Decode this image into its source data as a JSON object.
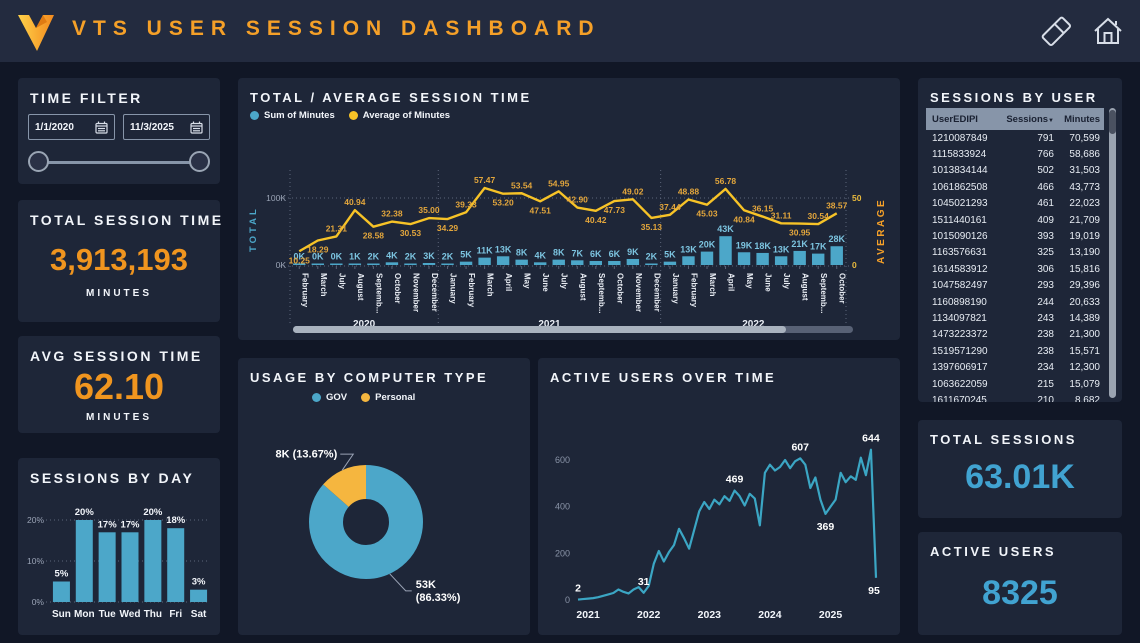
{
  "header": {
    "title": "VTS USER SESSION DASHBOARD"
  },
  "icons": {
    "eraser": "eraser-icon",
    "home": "home-icon",
    "calendar": "calendar-icon",
    "sort_desc": "▼"
  },
  "time_filter": {
    "title": "TIME FILTER",
    "start_date": "1/1/2020",
    "end_date": "11/3/2025"
  },
  "kpis": {
    "total_session_time": {
      "title": "TOTAL SESSION TIME",
      "value": "3,913,193",
      "unit": "MINUTES"
    },
    "avg_session_time": {
      "title": "AVG SESSION TIME",
      "value": "62.10",
      "unit": "MINUTES"
    },
    "total_sessions": {
      "title": "TOTAL SESSIONS",
      "value": "63.01K"
    },
    "active_users": {
      "title": "ACTIVE USERS",
      "value": "8325"
    }
  },
  "sessions_by_user": {
    "title": "SESSIONS BY USER",
    "columns": [
      "UserEDIPI",
      "Sessions",
      "Minutes"
    ],
    "rows": [
      [
        "1210087849",
        "791",
        "70,599"
      ],
      [
        "1115833924",
        "766",
        "58,686"
      ],
      [
        "1013834144",
        "502",
        "31,503"
      ],
      [
        "1061862508",
        "466",
        "43,773"
      ],
      [
        "1045021293",
        "461",
        "22,023"
      ],
      [
        "1511440161",
        "409",
        "21,709"
      ],
      [
        "1015090126",
        "393",
        "19,019"
      ],
      [
        "1163576631",
        "325",
        "13,190"
      ],
      [
        "1614583912",
        "306",
        "15,816"
      ],
      [
        "1047582497",
        "293",
        "29,396"
      ],
      [
        "1160898190",
        "244",
        "20,633"
      ],
      [
        "1134097821",
        "243",
        "14,389"
      ],
      [
        "1473223372",
        "238",
        "21,300"
      ],
      [
        "1519571290",
        "238",
        "15,571"
      ],
      [
        "1397606917",
        "234",
        "12,300"
      ],
      [
        "1063622059",
        "215",
        "15,079"
      ],
      [
        "1611670245",
        "210",
        "8,682"
      ]
    ]
  },
  "chart_data": [
    {
      "id": "total_avg_session_time",
      "type": "combo",
      "title": "TOTAL / AVERAGE SESSION TIME",
      "legend": [
        "Sum of Minutes",
        "Average of Minutes"
      ],
      "y_left": {
        "label": "TOTAL",
        "ticks": [
          "0K",
          "100K"
        ]
      },
      "y_right": {
        "label": "AVERAGE",
        "ticks": [
          "0",
          "50"
        ]
      },
      "year_groups": [
        {
          "year": "2020",
          "count": 8
        },
        {
          "year": "2021",
          "count": 12
        },
        {
          "year": "2022",
          "count": 10
        }
      ],
      "categories": [
        "February",
        "March",
        "July",
        "August",
        "Septemb...",
        "October",
        "November",
        "December",
        "January",
        "February",
        "March",
        "April",
        "May",
        "June",
        "July",
        "August",
        "Septemb...",
        "October",
        "November",
        "December",
        "January",
        "February",
        "March",
        "April",
        "May",
        "June",
        "July",
        "August",
        "Septemb...",
        "October"
      ],
      "series": [
        {
          "name": "Sum of Minutes",
          "type": "bar",
          "values_k": [
            0,
            0,
            0,
            1,
            2,
            4,
            2,
            3,
            2,
            5,
            11,
            13,
            8,
            4,
            8,
            7,
            6,
            6,
            9,
            2,
            5,
            13,
            20,
            43,
            19,
            18,
            13,
            21,
            17,
            28
          ],
          "labels": [
            "0K",
            "0K",
            "0K",
            "1K",
            "2K",
            "4K",
            "2K",
            "3K",
            "2K",
            "5K",
            "11K",
            "13K",
            "8K",
            "4K",
            "8K",
            "7K",
            "6K",
            "6K",
            "9K",
            "2K",
            "5K",
            "13K",
            "20K",
            "43K",
            "19K",
            "18K",
            "13K",
            "21K",
            "17K",
            "28K"
          ]
        },
        {
          "name": "Average of Minutes",
          "type": "line",
          "values": [
            10.25,
            18.29,
            21.31,
            40.94,
            28.58,
            32.38,
            30.53,
            35.0,
            34.29,
            39.33,
            57.47,
            53.2,
            53.54,
            47.51,
            54.95,
            42.9,
            40.42,
            47.73,
            49.02,
            35.13,
            37.44,
            48.88,
            45.03,
            56.78,
            40.84,
            36.15,
            31.11,
            30.95,
            30.54,
            38.57
          ],
          "labels": [
            "10.25",
            "18.29",
            "21.31",
            "40.94",
            "28.58",
            "32.38",
            "30.53",
            "35.00",
            "34.29",
            "39.33",
            "57.47",
            "53.20",
            "53.54",
            "47.51",
            "54.95",
            "42.90",
            "40.42",
            "47.73",
            "49.02",
            "35.13",
            "37.44",
            "48.88",
            "45.03",
            "56.78",
            "40.84",
            "36.15",
            "31.11",
            "30.95",
            "30.54",
            "38.57"
          ],
          "label_sides": [
            "b",
            "b",
            "a",
            "a",
            "b",
            "a",
            "b",
            "a",
            "b",
            "a",
            "a",
            "b",
            "a",
            "b",
            "a",
            "a",
            "b",
            "b",
            "a",
            "b",
            "a",
            "a",
            "b",
            "a",
            "b",
            "a",
            "a",
            "b",
            "a",
            "a"
          ]
        }
      ]
    },
    {
      "id": "sessions_by_day",
      "type": "bar",
      "title": "SESSIONS BY DAY",
      "categories": [
        "Sun",
        "Mon",
        "Tue",
        "Wed",
        "Thu",
        "Fri",
        "Sat"
      ],
      "values_pct": [
        5,
        20,
        17,
        17,
        20,
        18,
        3
      ],
      "labels": [
        "5%",
        "20%",
        "17%",
        "17%",
        "20%",
        "18%",
        "3%"
      ],
      "y_ticks": [
        "0%",
        "10%",
        "20%"
      ]
    },
    {
      "id": "usage_by_computer_type",
      "type": "pie",
      "title": "USAGE BY COMPUTER TYPE",
      "legend": [
        "GOV",
        "Personal"
      ],
      "slices": [
        {
          "name": "GOV",
          "value_label": "53K",
          "pct": 86.33,
          "color": "#4CA7C9"
        },
        {
          "name": "Personal",
          "value_label": "8K",
          "pct": 13.67,
          "color": "#F5B63F"
        }
      ],
      "labels": {
        "personal": "8K (13.67%)",
        "gov_value": "53K",
        "gov_pct": "(86.33%)"
      }
    },
    {
      "id": "active_users_over_time",
      "type": "line",
      "title": "ACTIVE USERS OVER TIME",
      "x_ticks": [
        "2021",
        "2022",
        "2023",
        "2024",
        "2025"
      ],
      "y_ticks": [
        0,
        200,
        400,
        600
      ],
      "line_color": "#3BA6C4",
      "labeled_points": [
        {
          "index": 0,
          "label": "2",
          "side": "a"
        },
        {
          "index": 13,
          "label": "31",
          "side": "a"
        },
        {
          "index": 31,
          "label": "469",
          "side": "a"
        },
        {
          "index": 44,
          "label": "607",
          "side": "a"
        },
        {
          "index": 49,
          "label": "369",
          "side": "b"
        },
        {
          "index": 58,
          "label": "644",
          "side": "a"
        },
        {
          "index": 59,
          "label": "95",
          "side": "b"
        }
      ],
      "estimated_values": [
        2,
        4,
        6,
        8,
        12,
        18,
        24,
        30,
        45,
        35,
        28,
        45,
        55,
        31,
        60,
        155,
        210,
        165,
        205,
        235,
        305,
        265,
        220,
        300,
        380,
        420,
        390,
        430,
        410,
        445,
        425,
        469,
        445,
        405,
        455,
        435,
        320,
        545,
        580,
        555,
        570,
        600,
        565,
        595,
        607,
        580,
        480,
        525,
        430,
        369,
        400,
        430,
        545,
        505,
        530,
        515,
        610,
        535,
        644,
        95
      ]
    }
  ],
  "colors": {
    "page_bg": "#111726",
    "header_bg": "#232B3F",
    "card_bg": "#1E2638",
    "accent_orange": "#F5A028",
    "kpi_orange": "#F0951F",
    "line_yellow": "#F7C327",
    "teal": "#4CA7C9",
    "kpi_blue": "#41A3D1",
    "table_header_bg": "#8795A9"
  }
}
